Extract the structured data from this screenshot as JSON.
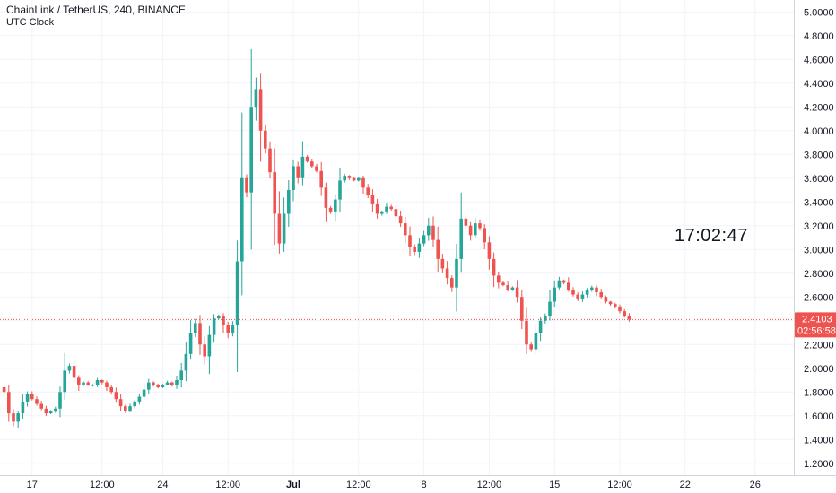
{
  "legend": {
    "title": "ChainLink / TetherUS, 240, BINANCE",
    "indicator": "UTC Clock"
  },
  "clock": {
    "time": "17:02:47"
  },
  "price_badge": {
    "price": "2.4103",
    "countdown": "02:56:58"
  },
  "colors": {
    "up": "#26a69a",
    "down": "#ef5350",
    "grid": "#f0f3fa",
    "axis_text": "#131722",
    "badge": "#ef5350"
  },
  "chart_data": {
    "type": "candlestick",
    "y_axis": {
      "range": [
        1.1,
        5.1
      ],
      "ticks": [
        "1.2000",
        "1.4000",
        "1.6000",
        "1.8000",
        "2.0000",
        "2.2000",
        "2.4000",
        "2.6000",
        "2.8000",
        "3.0000",
        "3.2000",
        "3.4000",
        "3.6000",
        "3.8000",
        "4.0000",
        "4.2000",
        "4.4000",
        "4.6000",
        "4.8000",
        "5.0000"
      ]
    },
    "x_axis": {
      "labels": [
        {
          "text": "17",
          "bar": 6
        },
        {
          "text": "12:00",
          "bar": 21
        },
        {
          "text": "24",
          "bar": 34
        },
        {
          "text": "12:00",
          "bar": 48
        },
        {
          "text": "Jul",
          "bar": 62
        },
        {
          "text": "12:00",
          "bar": 76
        },
        {
          "text": "8",
          "bar": 90
        },
        {
          "text": "12:00",
          "bar": 104
        },
        {
          "text": "15",
          "bar": 118
        },
        {
          "text": "12:00",
          "bar": 132
        },
        {
          "text": "22",
          "bar": 146
        },
        {
          "text": "26",
          "bar": 161
        }
      ]
    },
    "last_price": 2.4103,
    "closes": [
      1.8,
      1.62,
      1.55,
      1.62,
      1.72,
      1.78,
      1.74,
      1.7,
      1.66,
      1.62,
      1.64,
      1.66,
      1.8,
      1.98,
      2.02,
      1.92,
      1.86,
      1.88,
      1.86,
      1.86,
      1.9,
      1.88,
      1.84,
      1.8,
      1.74,
      1.68,
      1.64,
      1.68,
      1.72,
      1.76,
      1.82,
      1.88,
      1.86,
      1.84,
      1.86,
      1.88,
      1.86,
      1.9,
      1.98,
      2.12,
      2.3,
      2.38,
      2.2,
      2.1,
      2.28,
      2.42,
      2.44,
      2.36,
      2.3,
      2.36,
      2.9,
      3.6,
      3.48,
      4.2,
      4.35,
      4.0,
      3.85,
      3.65,
      3.3,
      3.05,
      3.3,
      3.5,
      3.7,
      3.6,
      3.78,
      3.74,
      3.7,
      3.66,
      3.52,
      3.35,
      3.32,
      3.42,
      3.58,
      3.62,
      3.6,
      3.58,
      3.6,
      3.52,
      3.46,
      3.38,
      3.3,
      3.32,
      3.36,
      3.34,
      3.28,
      3.22,
      3.12,
      3.02,
      2.98,
      3.05,
      3.12,
      3.2,
      3.08,
      2.92,
      2.84,
      2.76,
      2.68,
      2.92,
      3.26,
      3.2,
      3.12,
      3.22,
      3.18,
      3.06,
      2.92,
      2.78,
      2.72,
      2.7,
      2.66,
      2.68,
      2.6,
      2.4,
      2.2,
      2.16,
      2.3,
      2.4,
      2.44,
      2.56,
      2.68,
      2.74,
      2.72,
      2.66,
      2.62,
      2.58,
      2.62,
      2.66,
      2.68,
      2.64,
      2.6,
      2.56,
      2.54,
      2.52,
      2.48,
      2.44,
      2.41
    ]
  }
}
